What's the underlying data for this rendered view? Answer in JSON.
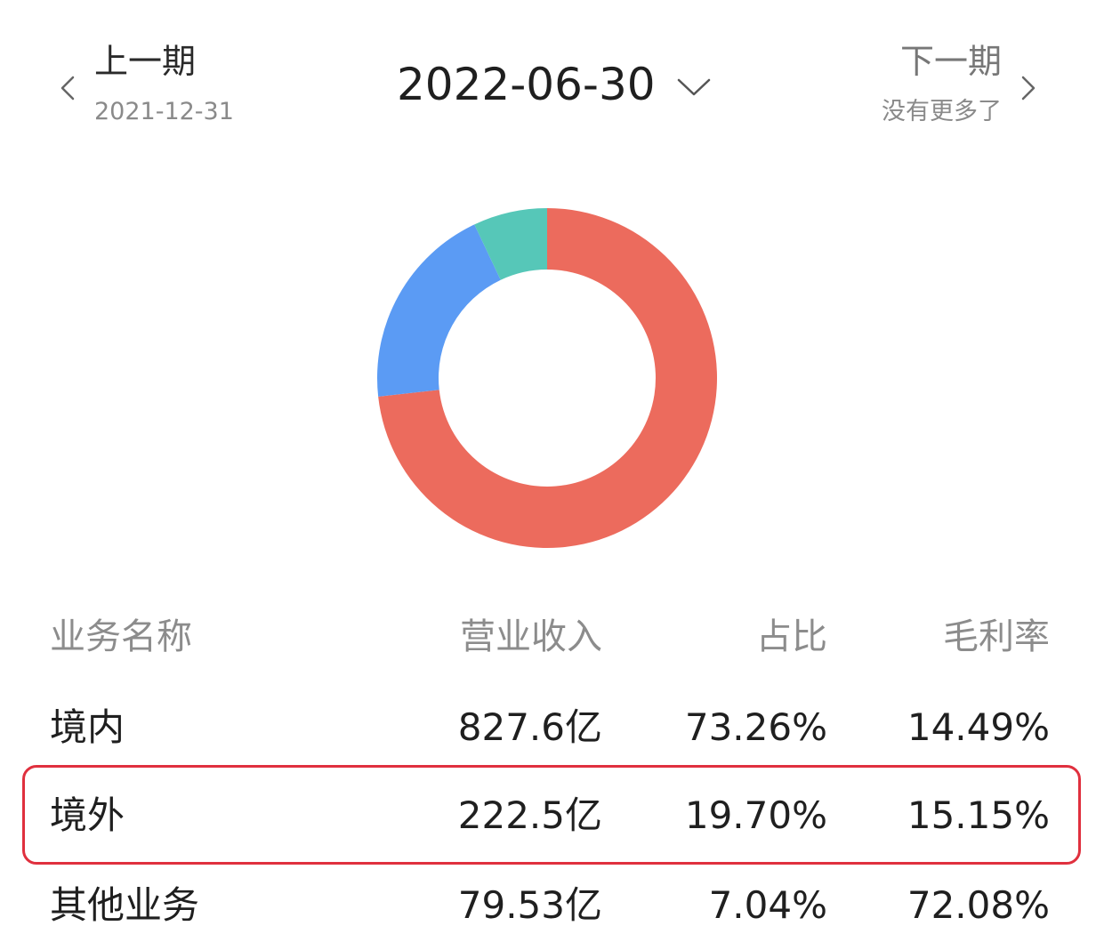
{
  "nav": {
    "prev": {
      "label": "上一期",
      "date": "2021-12-31"
    },
    "current": "2022-06-30",
    "next": {
      "label": "下一期",
      "note": "没有更多了"
    }
  },
  "chart_data": {
    "type": "pie",
    "variant": "donut",
    "categories": [
      "境内",
      "境外",
      "其他业务"
    ],
    "values": [
      73.26,
      19.7,
      7.04
    ],
    "colors": [
      "#ec6b5d",
      "#5b9bf4",
      "#56c7b8"
    ]
  },
  "table": {
    "headers": [
      "业务名称",
      "营业收入",
      "占比",
      "毛利率"
    ],
    "rows": [
      [
        "境内",
        "827.6亿",
        "73.26%",
        "14.49%"
      ],
      [
        "境外",
        "222.5亿",
        "19.70%",
        "15.15%"
      ],
      [
        "其他业务",
        "79.53亿",
        "7.04%",
        "72.08%"
      ]
    ],
    "highlighted_row": 1,
    "highlight_color": "#e0303e"
  }
}
